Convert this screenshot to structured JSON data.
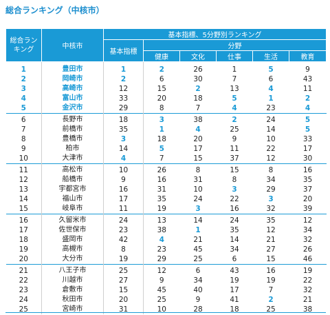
{
  "title": "総合ランキング（中核市）",
  "header": {
    "overall": "総合ラン\nキング",
    "city": "中核市",
    "group": "基本指標、5分野別ランキング",
    "basic": "基本指標",
    "fields": "分野",
    "cols": [
      "健康",
      "文化",
      "仕事",
      "生活",
      "教育"
    ]
  },
  "colors": {
    "accent": "#1a9ad6",
    "text": "#222222"
  },
  "rows": [
    {
      "rank": "1",
      "city": "豊田市",
      "basic": "1",
      "health": "2",
      "culture": "26",
      "work": "1",
      "life": "5",
      "edu": "9",
      "hl": [
        "rank",
        "city",
        "basic",
        "health",
        "life"
      ]
    },
    {
      "rank": "2",
      "city": "岡崎市",
      "basic": "2",
      "health": "6",
      "culture": "30",
      "work": "7",
      "life": "6",
      "edu": "43",
      "hl": [
        "rank",
        "city",
        "basic"
      ]
    },
    {
      "rank": "3",
      "city": "高崎市",
      "basic": "12",
      "health": "15",
      "culture": "2",
      "work": "13",
      "life": "4",
      "edu": "11",
      "hl": [
        "rank",
        "city",
        "culture",
        "life"
      ]
    },
    {
      "rank": "4",
      "city": "富山市",
      "basic": "33",
      "health": "20",
      "culture": "18",
      "work": "5",
      "life": "1",
      "edu": "2",
      "hl": [
        "rank",
        "city",
        "work",
        "life",
        "edu"
      ]
    },
    {
      "rank": "5",
      "city": "金沢市",
      "basic": "29",
      "health": "8",
      "culture": "7",
      "work": "4",
      "life": "23",
      "edu": "4",
      "hl": [
        "rank",
        "city",
        "work",
        "edu"
      ]
    },
    {
      "rank": "6",
      "city": "長野市",
      "basic": "18",
      "health": "3",
      "culture": "38",
      "work": "2",
      "life": "24",
      "edu": "5",
      "hl": [
        "health",
        "work",
        "edu"
      ],
      "group": true
    },
    {
      "rank": "7",
      "city": "前橋市",
      "basic": "35",
      "health": "1",
      "culture": "4",
      "work": "25",
      "life": "14",
      "edu": "5",
      "hl": [
        "health",
        "culture",
        "edu"
      ]
    },
    {
      "rank": "8",
      "city": "豊橋市",
      "basic": "3",
      "health": "18",
      "culture": "20",
      "work": "9",
      "life": "10",
      "edu": "33",
      "hl": [
        "basic"
      ]
    },
    {
      "rank": "9",
      "city": "柏市",
      "basic": "14",
      "health": "5",
      "culture": "17",
      "work": "11",
      "life": "22",
      "edu": "17",
      "hl": [
        "health"
      ]
    },
    {
      "rank": "10",
      "city": "大津市",
      "basic": "4",
      "health": "7",
      "culture": "15",
      "work": "37",
      "life": "12",
      "edu": "30",
      "hl": [
        "basic"
      ]
    },
    {
      "rank": "11",
      "city": "高松市",
      "basic": "10",
      "health": "26",
      "culture": "8",
      "work": "15",
      "life": "8",
      "edu": "16",
      "hl": [],
      "group": true
    },
    {
      "rank": "12",
      "city": "船橋市",
      "basic": "9",
      "health": "16",
      "culture": "31",
      "work": "8",
      "life": "34",
      "edu": "35",
      "hl": []
    },
    {
      "rank": "13",
      "city": "宇都宮市",
      "basic": "16",
      "health": "31",
      "culture": "10",
      "work": "3",
      "life": "29",
      "edu": "37",
      "hl": [
        "work"
      ]
    },
    {
      "rank": "14",
      "city": "福山市",
      "basic": "17",
      "health": "35",
      "culture": "24",
      "work": "22",
      "life": "3",
      "edu": "20",
      "hl": [
        "life"
      ]
    },
    {
      "rank": "15",
      "city": "岐阜市",
      "basic": "11",
      "health": "19",
      "culture": "3",
      "work": "16",
      "life": "32",
      "edu": "39",
      "hl": [
        "culture"
      ]
    },
    {
      "rank": "16",
      "city": "久留米市",
      "basic": "24",
      "health": "13",
      "culture": "14",
      "work": "24",
      "life": "35",
      "edu": "12",
      "hl": [],
      "group": true
    },
    {
      "rank": "17",
      "city": "佐世保市",
      "basic": "23",
      "health": "38",
      "culture": "1",
      "work": "35",
      "life": "12",
      "edu": "34",
      "hl": [
        "culture"
      ]
    },
    {
      "rank": "18",
      "city": "盛岡市",
      "basic": "42",
      "health": "4",
      "culture": "21",
      "work": "14",
      "life": "21",
      "edu": "32",
      "hl": [
        "health"
      ]
    },
    {
      "rank": "19",
      "city": "高槻市",
      "basic": "8",
      "health": "23",
      "culture": "45",
      "work": "34",
      "life": "27",
      "edu": "26",
      "hl": []
    },
    {
      "rank": "20",
      "city": "大分市",
      "basic": "19",
      "health": "29",
      "culture": "25",
      "work": "6",
      "life": "15",
      "edu": "46",
      "hl": []
    },
    {
      "rank": "21",
      "city": "八王子市",
      "basic": "25",
      "health": "12",
      "culture": "6",
      "work": "43",
      "life": "16",
      "edu": "19",
      "hl": [],
      "group": true
    },
    {
      "rank": "22",
      "city": "川越市",
      "basic": "27",
      "health": "9",
      "culture": "34",
      "work": "19",
      "life": "19",
      "edu": "22",
      "hl": []
    },
    {
      "rank": "23",
      "city": "倉敷市",
      "basic": "15",
      "health": "45",
      "culture": "40",
      "work": "17",
      "life": "7",
      "edu": "32",
      "hl": []
    },
    {
      "rank": "24",
      "city": "秋田市",
      "basic": "20",
      "health": "25",
      "culture": "9",
      "work": "41",
      "life": "2",
      "edu": "21",
      "hl": [
        "life"
      ]
    },
    {
      "rank": "25",
      "city": "宮崎市",
      "basic": "31",
      "health": "10",
      "culture": "28",
      "work": "18",
      "life": "25",
      "edu": "38",
      "hl": []
    }
  ]
}
